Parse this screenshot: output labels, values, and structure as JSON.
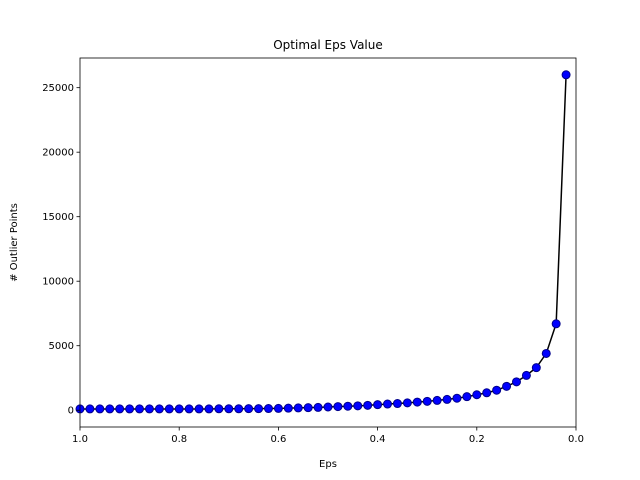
{
  "chart_data": {
    "type": "line",
    "title": "Optimal Eps Value",
    "xlabel": "Eps",
    "ylabel": "# Outlier Points",
    "xlim": [
      1.0,
      0.0
    ],
    "ylim": [
      -1300,
      27300
    ],
    "x_inverted": true,
    "grid": false,
    "line_color": "#000000",
    "marker_color": "#0000ff",
    "marker_edge_color": "#00008b",
    "x_ticks": [
      1.0,
      0.8,
      0.6,
      0.4,
      0.2,
      0.0
    ],
    "x_tick_labels": [
      "1.0",
      "0.8",
      "0.6",
      "0.4",
      "0.2",
      "0.0"
    ],
    "y_ticks": [
      0,
      5000,
      10000,
      15000,
      20000,
      25000
    ],
    "y_tick_labels": [
      "0",
      "5000",
      "10000",
      "15000",
      "20000",
      "25000"
    ],
    "series": [
      {
        "x": [
          1.0,
          0.98,
          0.96,
          0.94,
          0.92,
          0.9,
          0.88,
          0.86,
          0.84,
          0.82,
          0.8,
          0.78,
          0.76,
          0.74,
          0.72,
          0.7,
          0.68,
          0.66,
          0.64,
          0.62,
          0.6,
          0.58,
          0.56,
          0.54,
          0.52,
          0.5,
          0.48,
          0.46,
          0.44,
          0.42,
          0.4,
          0.38,
          0.36,
          0.34,
          0.32,
          0.3,
          0.28,
          0.26,
          0.24,
          0.22,
          0.2,
          0.18,
          0.16,
          0.14,
          0.12,
          0.1,
          0.08,
          0.06,
          0.04,
          0.02
        ],
        "y": [
          100,
          100,
          100,
          100,
          100,
          100,
          100,
          100,
          100,
          100,
          100,
          100,
          100,
          100,
          110,
          110,
          110,
          120,
          120,
          130,
          140,
          160,
          180,
          200,
          220,
          250,
          280,
          310,
          340,
          380,
          430,
          480,
          520,
          570,
          630,
          690,
          760,
          840,
          930,
          1050,
          1200,
          1350,
          1550,
          1850,
          2200,
          2700,
          3300,
          4400,
          6700,
          26000
        ]
      }
    ]
  }
}
